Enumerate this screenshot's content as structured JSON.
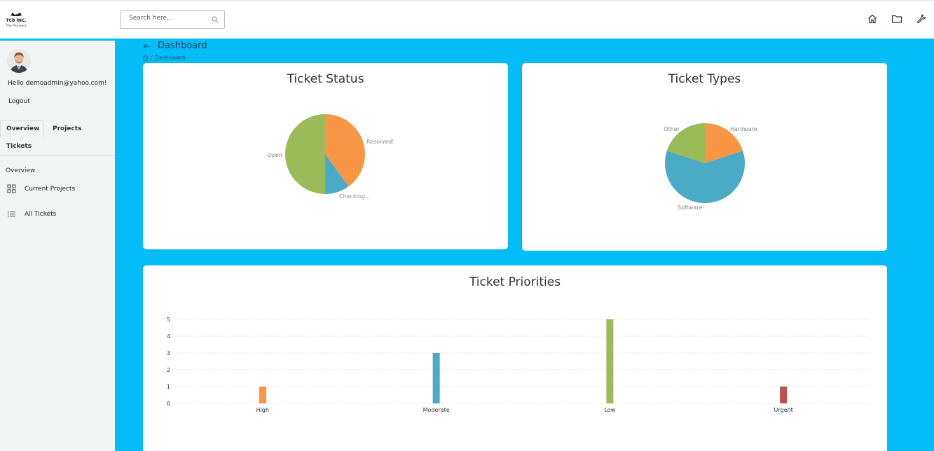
{
  "header": {
    "search_placeholder": "Search here..."
  },
  "user": {
    "greeting": "Hello demoadmin@yahoo.com!",
    "logout": "Logout"
  },
  "sidebar": {
    "tabs": [
      "Overview",
      "Projects",
      "Tickets"
    ],
    "section": "Overview",
    "items": [
      {
        "label": "Current Projects",
        "icon": "grid-icon"
      },
      {
        "label": "All Tickets",
        "icon": "list-icon"
      }
    ]
  },
  "page": {
    "title": "Dashboard",
    "breadcrumb": [
      "/",
      "Dashboard"
    ]
  },
  "colors": {
    "orange": "#f89645",
    "blue": "#4aabc6",
    "green": "#9bbb58",
    "red": "#c0504d",
    "background": "#04bdf8"
  },
  "chart_data": [
    {
      "type": "pie",
      "title": "Ticket Status",
      "slices": [
        {
          "label": "Resolved!",
          "value": 40,
          "color": "#f89645"
        },
        {
          "label": "Checking...",
          "value": 10,
          "color": "#4aabc6"
        },
        {
          "label": "Open",
          "value": 50,
          "color": "#9bbb58"
        }
      ]
    },
    {
      "type": "pie",
      "title": "Ticket Types",
      "slices": [
        {
          "label": "Hardware",
          "value": 20,
          "color": "#f89645"
        },
        {
          "label": "Software",
          "value": 60,
          "color": "#4aabc6"
        },
        {
          "label": "Other",
          "value": 20,
          "color": "#9bbb58"
        }
      ]
    },
    {
      "type": "bar",
      "title": "Ticket Priorities",
      "categories": [
        "High",
        "Moderate",
        "Low",
        "Urgent"
      ],
      "values": [
        1,
        3,
        5,
        1
      ],
      "colors": [
        "#f89645",
        "#4aabc6",
        "#9bbb58",
        "#c0504d"
      ],
      "ylim": [
        0,
        5
      ],
      "yticks": [
        0,
        1,
        2,
        3,
        4,
        5
      ],
      "grid": true
    }
  ]
}
